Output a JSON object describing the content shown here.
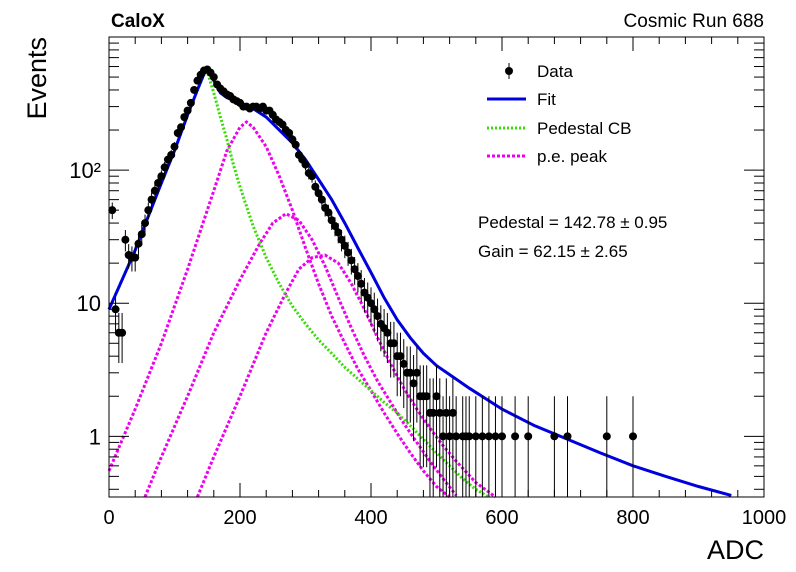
{
  "chart_data": {
    "type": "scatter",
    "label_left": "CaloX",
    "label_right": "Cosmic Run 688",
    "xlabel": "ADC",
    "ylabel": "Events",
    "xlim": [
      0,
      1000
    ],
    "ylim": [
      0.35,
      1000
    ],
    "yscale": "log",
    "x_ticks": [
      "0",
      "200",
      "400",
      "600",
      "800",
      "1000"
    ],
    "y_ticks": [
      {
        "value": 1,
        "label": "1"
      },
      {
        "value": 10,
        "label": "10"
      },
      {
        "value": 100,
        "label": "10²"
      }
    ],
    "grid": false,
    "legend_position": "top-right",
    "legend": [
      {
        "key": "data",
        "label": "Data"
      },
      {
        "key": "fit",
        "label": "Fit"
      },
      {
        "key": "pedestal",
        "label": "Pedestal CB"
      },
      {
        "key": "pe",
        "label": "p.e. peak"
      }
    ],
    "annotations": [
      "Pedestal = 142.78 ± 0.95",
      "Gain = 62.15 ± 2.65"
    ],
    "colors": {
      "data": "#000000",
      "fit": "#0000dd",
      "pedestal": "#33dd00",
      "pe": "#ee00ee"
    },
    "series": [
      {
        "name": "Data",
        "style": "points",
        "points": [
          [
            5,
            50
          ],
          [
            10,
            9
          ],
          [
            15,
            6
          ],
          [
            20,
            6
          ],
          [
            25,
            30
          ],
          [
            30,
            23
          ],
          [
            35,
            22
          ],
          [
            40,
            22
          ],
          [
            45,
            28
          ],
          [
            50,
            33
          ],
          [
            55,
            40
          ],
          [
            60,
            50
          ],
          [
            65,
            60
          ],
          [
            70,
            70
          ],
          [
            75,
            80
          ],
          [
            80,
            90
          ],
          [
            85,
            105
          ],
          [
            90,
            120
          ],
          [
            95,
            130
          ],
          [
            100,
            150
          ],
          [
            105,
            190
          ],
          [
            110,
            210
          ],
          [
            115,
            250
          ],
          [
            120,
            280
          ],
          [
            125,
            320
          ],
          [
            130,
            400
          ],
          [
            135,
            470
          ],
          [
            140,
            520
          ],
          [
            145,
            560
          ],
          [
            150,
            570
          ],
          [
            155,
            540
          ],
          [
            160,
            500
          ],
          [
            165,
            440
          ],
          [
            170,
            410
          ],
          [
            175,
            390
          ],
          [
            180,
            370
          ],
          [
            185,
            360
          ],
          [
            190,
            340
          ],
          [
            195,
            330
          ],
          [
            200,
            320
          ],
          [
            205,
            300
          ],
          [
            210,
            300
          ],
          [
            215,
            290
          ],
          [
            220,
            300
          ],
          [
            225,
            300
          ],
          [
            230,
            290
          ],
          [
            235,
            300
          ],
          [
            240,
            280
          ],
          [
            245,
            280
          ],
          [
            250,
            260
          ],
          [
            255,
            240
          ],
          [
            260,
            230
          ],
          [
            265,
            220
          ],
          [
            270,
            200
          ],
          [
            275,
            190
          ],
          [
            280,
            170
          ],
          [
            285,
            155
          ],
          [
            290,
            130
          ],
          [
            295,
            120
          ],
          [
            300,
            110
          ],
          [
            305,
            95
          ],
          [
            310,
            90
          ],
          [
            315,
            75
          ],
          [
            320,
            67
          ],
          [
            325,
            60
          ],
          [
            330,
            52
          ],
          [
            335,
            48
          ],
          [
            340,
            42
          ],
          [
            345,
            38
          ],
          [
            350,
            34
          ],
          [
            355,
            30
          ],
          [
            360,
            27
          ],
          [
            365,
            24
          ],
          [
            370,
            21
          ],
          [
            375,
            18
          ],
          [
            380,
            16
          ],
          [
            385,
            14
          ],
          [
            390,
            12
          ],
          [
            395,
            11
          ],
          [
            400,
            10
          ],
          [
            405,
            9
          ],
          [
            410,
            8
          ],
          [
            415,
            7
          ],
          [
            420,
            6.5
          ],
          [
            425,
            6
          ],
          [
            430,
            5
          ],
          [
            435,
            5
          ],
          [
            440,
            4
          ],
          [
            445,
            4
          ],
          [
            450,
            3.5
          ],
          [
            455,
            3
          ],
          [
            460,
            3
          ],
          [
            465,
            2.5
          ],
          [
            470,
            3
          ],
          [
            475,
            2
          ],
          [
            480,
            2
          ],
          [
            485,
            2
          ],
          [
            490,
            1.5
          ],
          [
            495,
            1.5
          ],
          [
            500,
            2
          ],
          [
            505,
            1.5
          ],
          [
            510,
            1
          ],
          [
            515,
            1.5
          ],
          [
            520,
            1
          ],
          [
            525,
            1.5
          ],
          [
            530,
            1
          ],
          [
            540,
            1
          ],
          [
            545,
            1
          ],
          [
            550,
            1
          ],
          [
            560,
            1
          ],
          [
            570,
            1
          ],
          [
            580,
            1
          ],
          [
            590,
            1
          ],
          [
            600,
            1
          ],
          [
            620,
            1
          ],
          [
            640,
            1
          ],
          [
            680,
            1
          ],
          [
            700,
            1
          ],
          [
            760,
            1
          ],
          [
            800,
            1
          ]
        ]
      },
      {
        "name": "Fit",
        "style": "line",
        "points": [
          [
            0,
            9
          ],
          [
            20,
            15
          ],
          [
            40,
            25
          ],
          [
            60,
            45
          ],
          [
            80,
            80
          ],
          [
            100,
            140
          ],
          [
            120,
            260
          ],
          [
            135,
            400
          ],
          [
            145,
            530
          ],
          [
            150,
            560
          ],
          [
            160,
            470
          ],
          [
            170,
            380
          ],
          [
            180,
            350
          ],
          [
            200,
            320
          ],
          [
            220,
            290
          ],
          [
            240,
            250
          ],
          [
            260,
            200
          ],
          [
            280,
            160
          ],
          [
            300,
            120
          ],
          [
            320,
            85
          ],
          [
            340,
            60
          ],
          [
            360,
            40
          ],
          [
            380,
            26
          ],
          [
            400,
            17
          ],
          [
            420,
            11
          ],
          [
            440,
            7.5
          ],
          [
            460,
            5.5
          ],
          [
            480,
            4.2
          ],
          [
            500,
            3.4
          ],
          [
            550,
            2.3
          ],
          [
            600,
            1.6
          ],
          [
            650,
            1.2
          ],
          [
            700,
            0.95
          ],
          [
            750,
            0.75
          ],
          [
            800,
            0.6
          ],
          [
            850,
            0.5
          ],
          [
            900,
            0.42
          ],
          [
            950,
            0.36
          ]
        ]
      },
      {
        "name": "Pedestal CB",
        "style": "dotted",
        "points": [
          [
            0,
            9
          ],
          [
            20,
            15
          ],
          [
            40,
            25
          ],
          [
            60,
            45
          ],
          [
            80,
            80
          ],
          [
            100,
            140
          ],
          [
            120,
            260
          ],
          [
            135,
            400
          ],
          [
            145,
            520
          ],
          [
            150,
            550
          ],
          [
            160,
            380
          ],
          [
            170,
            250
          ],
          [
            180,
            170
          ],
          [
            190,
            110
          ],
          [
            200,
            75
          ],
          [
            220,
            38
          ],
          [
            240,
            22
          ],
          [
            260,
            14
          ],
          [
            280,
            9.5
          ],
          [
            300,
            7
          ],
          [
            320,
            5.3
          ],
          [
            340,
            4.2
          ],
          [
            360,
            3.3
          ],
          [
            380,
            2.7
          ],
          [
            400,
            2.2
          ],
          [
            420,
            1.8
          ],
          [
            440,
            1.5
          ],
          [
            460,
            1.2
          ],
          [
            480,
            0.95
          ],
          [
            500,
            0.75
          ],
          [
            520,
            0.6
          ],
          [
            540,
            0.48
          ],
          [
            560,
            0.4
          ],
          [
            580,
            0.34
          ]
        ]
      },
      {
        "name": "p.e. peak",
        "style": "dotted",
        "curves": [
          [
            [
              0,
              0.55
            ],
            [
              40,
              1.6
            ],
            [
              80,
              5
            ],
            [
              120,
              18
            ],
            [
              160,
              70
            ],
            [
              180,
              140
            ],
            [
              200,
              210
            ],
            [
              210,
              230
            ],
            [
              220,
              210
            ],
            [
              240,
              150
            ],
            [
              260,
              90
            ],
            [
              280,
              50
            ],
            [
              300,
              26
            ],
            [
              320,
              14
            ],
            [
              340,
              8
            ],
            [
              360,
              5
            ],
            [
              380,
              3.2
            ],
            [
              400,
              2.2
            ],
            [
              420,
              1.5
            ],
            [
              440,
              1.05
            ],
            [
              460,
              0.75
            ],
            [
              480,
              0.55
            ],
            [
              500,
              0.42
            ],
            [
              520,
              0.33
            ]
          ],
          [
            [
              55,
              0.35
            ],
            [
              80,
              0.7
            ],
            [
              120,
              2
            ],
            [
              160,
              6
            ],
            [
              200,
              15
            ],
            [
              230,
              28
            ],
            [
              250,
              40
            ],
            [
              270,
              47
            ],
            [
              290,
              42
            ],
            [
              310,
              30
            ],
            [
              330,
              19
            ],
            [
              350,
              11
            ],
            [
              370,
              6.5
            ],
            [
              390,
              4
            ],
            [
              410,
              2.6
            ],
            [
              430,
              1.8
            ],
            [
              450,
              1.25
            ],
            [
              470,
              0.9
            ],
            [
              490,
              0.65
            ],
            [
              510,
              0.48
            ],
            [
              530,
              0.36
            ]
          ],
          [
            [
              135,
              0.35
            ],
            [
              160,
              0.7
            ],
            [
              200,
              2
            ],
            [
              240,
              6
            ],
            [
              270,
              12
            ],
            [
              290,
              18
            ],
            [
              310,
              22
            ],
            [
              330,
              23
            ],
            [
              350,
              20
            ],
            [
              370,
              14
            ],
            [
              390,
              9
            ],
            [
              410,
              5.5
            ],
            [
              430,
              3.5
            ],
            [
              450,
              2.3
            ],
            [
              470,
              1.6
            ],
            [
              490,
              1.15
            ],
            [
              510,
              0.85
            ],
            [
              530,
              0.65
            ],
            [
              560,
              0.45
            ],
            [
              590,
              0.35
            ]
          ]
        ]
      }
    ]
  }
}
